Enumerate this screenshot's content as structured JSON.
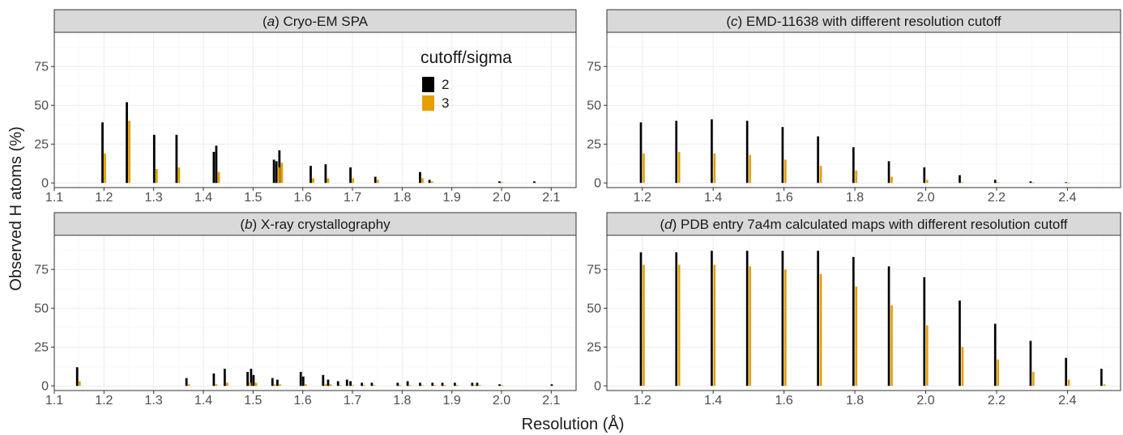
{
  "figure": {
    "xlabel": "Resolution (Å)",
    "ylabel": "Observed H atoms (%)"
  },
  "legend": {
    "title": "cutoff/sigma",
    "items": [
      {
        "label": "2",
        "color": "#000000"
      },
      {
        "label": "3",
        "color": "#E69F00"
      }
    ]
  },
  "chart_data": [
    {
      "id": "a",
      "type": "bar",
      "title_prefix": "(",
      "title_letter": "a",
      "title_suffix": ") Cryo-EM SPA",
      "xlim": [
        1.1,
        2.15
      ],
      "ylim": [
        -3,
        97
      ],
      "xticks": [
        "1.1",
        "1.2",
        "1.3",
        "1.4",
        "1.5",
        "1.6",
        "1.7",
        "1.8",
        "1.9",
        "2.0",
        "2.1"
      ],
      "yticks": [
        "0",
        "25",
        "50",
        "75"
      ],
      "show_xticks": true,
      "show_yticks": true,
      "show_legend": true,
      "bar_width": 0.0045,
      "series": [
        {
          "name": "2",
          "color": "#000000",
          "points": [
            [
              1.197,
              39
            ],
            [
              1.246,
              52
            ],
            [
              1.301,
              31
            ],
            [
              1.346,
              31
            ],
            [
              1.421,
              20
            ],
            [
              1.426,
              24
            ],
            [
              1.542,
              15
            ],
            [
              1.547,
              14
            ],
            [
              1.553,
              21
            ],
            [
              1.616,
              11
            ],
            [
              1.646,
              12
            ],
            [
              1.696,
              10
            ],
            [
              1.746,
              4
            ],
            [
              1.836,
              7
            ],
            [
              1.855,
              2
            ],
            [
              1.996,
              1
            ],
            [
              2.066,
              1
            ]
          ]
        },
        {
          "name": "3",
          "color": "#E69F00",
          "points": [
            [
              1.202,
              19
            ],
            [
              1.251,
              40
            ],
            [
              1.306,
              9
            ],
            [
              1.351,
              10
            ],
            [
              1.431,
              7
            ],
            [
              1.552,
              10
            ],
            [
              1.558,
              13
            ],
            [
              1.621,
              3
            ],
            [
              1.651,
              3
            ],
            [
              1.701,
              3
            ],
            [
              1.751,
              2
            ],
            [
              1.841,
              3
            ],
            [
              1.86,
              1
            ],
            [
              2.001,
              0.5
            ]
          ]
        }
      ]
    },
    {
      "id": "b",
      "type": "bar",
      "title_prefix": "(",
      "title_letter": "b",
      "title_suffix": ") X-ray crystallography",
      "xlim": [
        1.1,
        2.15
      ],
      "ylim": [
        -3,
        97
      ],
      "xticks": [
        "1.1",
        "1.2",
        "1.3",
        "1.4",
        "1.5",
        "1.6",
        "1.7",
        "1.8",
        "1.9",
        "2.0",
        "2.1"
      ],
      "yticks": [
        "0",
        "25",
        "50",
        "75"
      ],
      "show_xticks": true,
      "show_yticks": true,
      "show_legend": false,
      "bar_width": 0.0045,
      "series": [
        {
          "name": "2",
          "color": "#000000",
          "points": [
            [
              1.146,
              12
            ],
            [
              1.366,
              5
            ],
            [
              1.421,
              8
            ],
            [
              1.443,
              11
            ],
            [
              1.489,
              9
            ],
            [
              1.496,
              11
            ],
            [
              1.501,
              7
            ],
            [
              1.539,
              5
            ],
            [
              1.549,
              4
            ],
            [
              1.596,
              9
            ],
            [
              1.601,
              6
            ],
            [
              1.641,
              7
            ],
            [
              1.651,
              4
            ],
            [
              1.671,
              3
            ],
            [
              1.689,
              4
            ],
            [
              1.696,
              3
            ],
            [
              1.719,
              2
            ],
            [
              1.739,
              2
            ],
            [
              1.791,
              2
            ],
            [
              1.811,
              3
            ],
            [
              1.836,
              2
            ],
            [
              1.861,
              2
            ],
            [
              1.881,
              2
            ],
            [
              1.906,
              2
            ],
            [
              1.941,
              2
            ],
            [
              1.951,
              2
            ],
            [
              1.996,
              1
            ],
            [
              2.101,
              1
            ]
          ]
        },
        {
          "name": "3",
          "color": "#E69F00",
          "points": [
            [
              1.151,
              3
            ],
            [
              1.371,
              1
            ],
            [
              1.426,
              1
            ],
            [
              1.448,
              2
            ],
            [
              1.494,
              2
            ],
            [
              1.506,
              2
            ],
            [
              1.544,
              1
            ],
            [
              1.554,
              1
            ],
            [
              1.606,
              1
            ],
            [
              1.646,
              1
            ],
            [
              1.656,
              1
            ],
            [
              1.676,
              0.5
            ],
            [
              1.701,
              0.5
            ],
            [
              1.724,
              0.5
            ],
            [
              1.744,
              0.5
            ],
            [
              1.796,
              0.5
            ],
            [
              1.816,
              0.5
            ],
            [
              1.841,
              0.5
            ],
            [
              1.866,
              0.5
            ],
            [
              1.886,
              0.5
            ],
            [
              1.911,
              0.5
            ],
            [
              1.946,
              0.5
            ],
            [
              1.956,
              0.5
            ],
            [
              2.001,
              0.5
            ]
          ]
        }
      ]
    },
    {
      "id": "c",
      "type": "bar",
      "title_prefix": "(",
      "title_letter": "c",
      "title_suffix": ") EMD-11638 with different resolution cutoff",
      "xlim": [
        1.1,
        2.55
      ],
      "ylim": [
        -3,
        97
      ],
      "xticks": [
        "1.2",
        "1.4",
        "1.6",
        "1.8",
        "2.0",
        "2.2",
        "2.4"
      ],
      "yticks": [
        "0",
        "25",
        "50",
        "75"
      ],
      "show_xticks": true,
      "show_yticks": true,
      "show_legend": false,
      "bar_width": 0.006,
      "series": [
        {
          "name": "2",
          "color": "#000000",
          "points": [
            [
              1.196,
              39
            ],
            [
              1.296,
              40
            ],
            [
              1.396,
              41
            ],
            [
              1.496,
              40
            ],
            [
              1.596,
              36
            ],
            [
              1.696,
              30
            ],
            [
              1.796,
              23
            ],
            [
              1.896,
              14
            ],
            [
              1.996,
              10
            ],
            [
              2.096,
              5
            ],
            [
              2.196,
              2
            ],
            [
              2.296,
              1
            ],
            [
              2.396,
              0.5
            ]
          ]
        },
        {
          "name": "3",
          "color": "#E69F00",
          "points": [
            [
              1.204,
              19
            ],
            [
              1.304,
              20
            ],
            [
              1.404,
              19
            ],
            [
              1.504,
              18
            ],
            [
              1.604,
              15
            ],
            [
              1.704,
              11
            ],
            [
              1.804,
              8
            ],
            [
              1.904,
              4
            ],
            [
              2.004,
              2
            ],
            [
              2.104,
              0.5
            ],
            [
              2.204,
              0.5
            ],
            [
              2.304,
              0.3
            ],
            [
              2.404,
              0.2
            ]
          ]
        }
      ]
    },
    {
      "id": "d",
      "type": "bar",
      "title_prefix": "(",
      "title_letter": "d",
      "title_suffix": ") PDB entry 7a4m calculated maps with different resolution cutoff",
      "xlim": [
        1.1,
        2.55
      ],
      "ylim": [
        -3,
        97
      ],
      "xticks": [
        "1.2",
        "1.4",
        "1.6",
        "1.8",
        "2.0",
        "2.2",
        "2.4"
      ],
      "yticks": [
        "0",
        "25",
        "50",
        "75"
      ],
      "show_xticks": true,
      "show_yticks": true,
      "show_legend": false,
      "bar_width": 0.006,
      "series": [
        {
          "name": "2",
          "color": "#000000",
          "points": [
            [
              1.196,
              86
            ],
            [
              1.296,
              86
            ],
            [
              1.396,
              87
            ],
            [
              1.496,
              87
            ],
            [
              1.596,
              87
            ],
            [
              1.696,
              87
            ],
            [
              1.796,
              83
            ],
            [
              1.896,
              77
            ],
            [
              1.996,
              70
            ],
            [
              2.096,
              55
            ],
            [
              2.196,
              40
            ],
            [
              2.296,
              29
            ],
            [
              2.396,
              18
            ],
            [
              2.496,
              11
            ]
          ]
        },
        {
          "name": "3",
          "color": "#E69F00",
          "points": [
            [
              1.204,
              78
            ],
            [
              1.304,
              78
            ],
            [
              1.404,
              78
            ],
            [
              1.504,
              77
            ],
            [
              1.604,
              75
            ],
            [
              1.704,
              72
            ],
            [
              1.804,
              64
            ],
            [
              1.904,
              52
            ],
            [
              2.004,
              39
            ],
            [
              2.104,
              25
            ],
            [
              2.204,
              17
            ],
            [
              2.304,
              9
            ],
            [
              2.404,
              4
            ],
            [
              2.504,
              1
            ]
          ]
        }
      ]
    }
  ]
}
